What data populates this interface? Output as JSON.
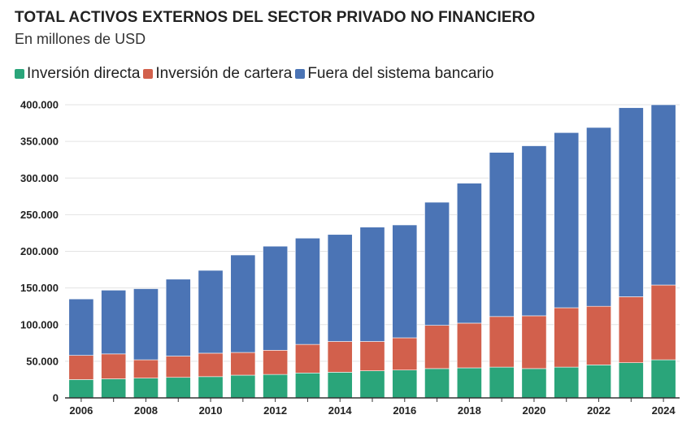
{
  "chart_data": {
    "type": "bar",
    "stacked": true,
    "title": "TOTAL ACTIVOS EXTERNOS DEL SECTOR PRIVADO NO FINANCIERO",
    "subtitle": "En millones de USD",
    "xlabel": "",
    "ylabel": "",
    "ylim": [
      0,
      400000
    ],
    "yticks": [
      0,
      50000,
      100000,
      150000,
      200000,
      250000,
      300000,
      350000,
      400000
    ],
    "ytick_labels": [
      "0",
      "50.000",
      "100.000",
      "150.000",
      "200.000",
      "250.000",
      "300.000",
      "350.000",
      "400.000"
    ],
    "categories": [
      "2006",
      "2007",
      "2008",
      "2009",
      "2010",
      "2011",
      "2012",
      "2013",
      "2014",
      "2015",
      "2016",
      "2017",
      "2018",
      "2019",
      "2020",
      "2021",
      "2022",
      "2023",
      "2024"
    ],
    "xtick_labels": [
      "2006",
      "2008",
      "2010",
      "2012",
      "2014",
      "2016",
      "2018",
      "2020",
      "2022",
      "2024"
    ],
    "grid": true,
    "legend_position": "top-left",
    "series": [
      {
        "name": "Inversión directa",
        "color": "#2aa57a",
        "values": [
          25000,
          26000,
          27000,
          28000,
          29000,
          31000,
          32000,
          34000,
          35000,
          37000,
          38000,
          40000,
          41000,
          42000,
          40000,
          42000,
          45000,
          48000,
          52000
        ]
      },
      {
        "name": "Inversión de cartera",
        "color": "#d2604c",
        "values": [
          33000,
          34000,
          25000,
          29000,
          32000,
          31000,
          33000,
          39000,
          42000,
          40000,
          44000,
          59000,
          61000,
          69000,
          72000,
          81000,
          80000,
          90000,
          102000
        ]
      },
      {
        "name": "Fuera del sistema bancario",
        "color": "#4b74b5",
        "values": [
          77000,
          87000,
          97000,
          105000,
          113000,
          133000,
          142000,
          145000,
          146000,
          156000,
          154000,
          168000,
          191000,
          224000,
          232000,
          239000,
          244000,
          258000,
          246000
        ]
      }
    ]
  }
}
